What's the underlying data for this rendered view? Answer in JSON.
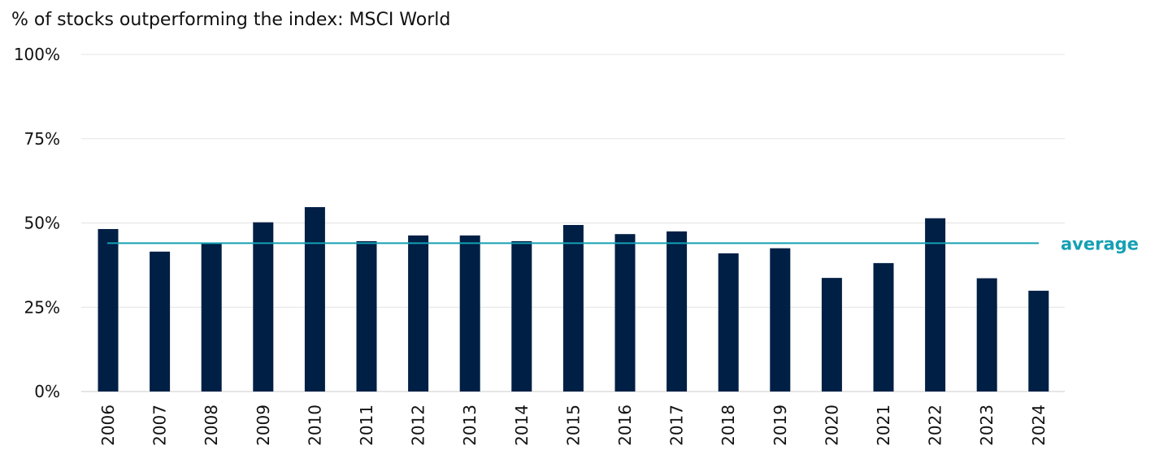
{
  "chart_data": {
    "type": "bar",
    "title": "% of stocks outperforming the index: MSCI World",
    "xlabel": "",
    "ylabel": "",
    "ylim": [
      0,
      100
    ],
    "yticks": [
      "0%",
      "25%",
      "50%",
      "75%",
      "100%"
    ],
    "ytick_values": [
      0,
      25,
      50,
      75,
      100
    ],
    "grid": true,
    "categories": [
      "2006",
      "2007",
      "2008",
      "2009",
      "2010",
      "2011",
      "2012",
      "2013",
      "2014",
      "2015",
      "2016",
      "2017",
      "2018",
      "2019",
      "2020",
      "2021",
      "2022",
      "2023",
      "2024"
    ],
    "values": [
      48.2,
      41.5,
      44.2,
      50.2,
      54.7,
      44.6,
      46.3,
      46.3,
      44.6,
      49.4,
      46.7,
      47.5,
      41.0,
      42.5,
      33.7,
      38.1,
      51.4,
      33.6,
      29.9
    ],
    "average": {
      "label": "average",
      "value": 44.0
    },
    "colors": {
      "bar": "#001F45",
      "average": "#14A0B4",
      "grid": "#E3E3E3",
      "axis": "#CCCCCC"
    }
  }
}
